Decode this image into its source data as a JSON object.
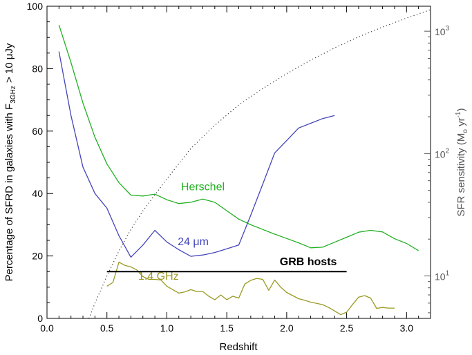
{
  "chart_data": {
    "type": "line",
    "xlabel": "Redshift",
    "ylabel": "Percentage of SFRD in galaxies with F3GHz > 10 μJy",
    "ylabel_parts": {
      "main": "Percentage of SFRD in galaxies with F",
      "sub": "3GHz",
      "tail": " > 10 μJy"
    },
    "y2label": "SFR sensitivity (M☉ yr-1)",
    "y2label_parts": {
      "main": "SFR sensitivity (M",
      "sub": "o",
      "mid": " yr",
      "sup": "-1",
      "tail": ")"
    },
    "xlim": [
      0.0,
      3.2
    ],
    "ylim": [
      0,
      100
    ],
    "y2lim": [
      4.5,
      1600
    ],
    "y2scale": "log",
    "x_ticks": [
      "0.0",
      "0.5",
      "1.0",
      "1.5",
      "2.0",
      "2.5",
      "3.0"
    ],
    "x_tick_values": [
      0.0,
      0.5,
      1.0,
      1.5,
      2.0,
      2.5,
      3.0
    ],
    "y_ticks": [
      "0",
      "20",
      "40",
      "60",
      "80",
      "100"
    ],
    "y_tick_values": [
      0,
      20,
      40,
      60,
      80,
      100
    ],
    "y2_ticks": [
      {
        "value": 10,
        "base": "10",
        "exp": "1"
      },
      {
        "value": 100,
        "base": "10",
        "exp": "2"
      },
      {
        "value": 1000,
        "base": "10",
        "exp": "3"
      }
    ],
    "series": [
      {
        "name": "Herschel",
        "color": "#22b022",
        "axis": "left",
        "label_pos": [
          1.3,
          41
        ],
        "x": [
          0.1,
          0.2,
          0.3,
          0.4,
          0.5,
          0.6,
          0.7,
          0.8,
          0.9,
          1.0,
          1.1,
          1.2,
          1.3,
          1.4,
          1.5,
          1.6,
          1.7,
          1.8,
          1.9,
          2.0,
          2.1,
          2.2,
          2.3,
          2.4,
          2.5,
          2.6,
          2.7,
          2.8,
          2.9,
          3.0,
          3.1
        ],
        "values": [
          94,
          82,
          69,
          58,
          49.5,
          43.5,
          39.5,
          39.2,
          39.8,
          38,
          36.8,
          37.2,
          38.2,
          37.2,
          34.5,
          31.8,
          30,
          28.5,
          27,
          25.6,
          24.2,
          22.6,
          22.8,
          24.4,
          26,
          27.6,
          28.2,
          27.7,
          25.5,
          24,
          21.7
        ]
      },
      {
        "name": "24 μm",
        "color": "#4444bb",
        "axis": "left",
        "label_pos": [
          1.22,
          23.5
        ],
        "x": [
          0.1,
          0.2,
          0.3,
          0.4,
          0.5,
          0.6,
          0.7,
          0.8,
          0.9,
          1.0,
          1.1,
          1.2,
          1.3,
          1.4,
          1.5,
          1.6,
          1.7,
          1.8,
          1.9,
          2.0,
          2.1,
          2.2,
          2.3,
          2.4
        ],
        "values": [
          85.5,
          65,
          48.5,
          40,
          35.3,
          26.5,
          19.6,
          23.5,
          28.2,
          24.5,
          22,
          19.9,
          20.3,
          21.1,
          22.3,
          23.5,
          33,
          43,
          53,
          57,
          61,
          62.5,
          64,
          65
        ]
      },
      {
        "name": "1.4 GHz",
        "color": "#999922",
        "axis": "left",
        "label_pos": [
          0.93,
          12.4
        ],
        "x": [
          0.5,
          0.55,
          0.6,
          0.65,
          0.7,
          0.75,
          0.8,
          0.85,
          0.9,
          0.95,
          1.0,
          1.05,
          1.1,
          1.15,
          1.2,
          1.25,
          1.3,
          1.35,
          1.4,
          1.45,
          1.5,
          1.55,
          1.6,
          1.65,
          1.7,
          1.75,
          1.8,
          1.85,
          1.9,
          1.95,
          2.0,
          2.05,
          2.1,
          2.15,
          2.2,
          2.25,
          2.3,
          2.35,
          2.4,
          2.45,
          2.5,
          2.55,
          2.6,
          2.65,
          2.7,
          2.75,
          2.8,
          2.85,
          2.9
        ],
        "values": [
          10.3,
          11.5,
          18,
          17,
          16.5,
          15.5,
          13.4,
          12.5,
          12.5,
          12.3,
          10.3,
          9.2,
          8.1,
          8.5,
          9.2,
          8.6,
          8.6,
          7.1,
          6,
          7.5,
          6,
          7.1,
          6.5,
          11,
          12.2,
          12.8,
          12.5,
          9,
          12.3,
          10,
          8.3,
          7.3,
          6.3,
          5.8,
          5.2,
          4.8,
          4.4,
          3.5,
          2.4,
          1.2,
          2,
          4.5,
          6.8,
          7.3,
          6.5,
          3.2,
          3.5,
          3.3,
          3.3
        ]
      },
      {
        "name": "SFR sensitivity",
        "color": "#333333",
        "axis": "right",
        "style": "dotted",
        "x": [
          0.35,
          0.4,
          0.5,
          0.6,
          0.7,
          0.8,
          0.9,
          1.0,
          1.2,
          1.4,
          1.6,
          1.8,
          2.0,
          2.2,
          2.4,
          2.6,
          2.8,
          3.0,
          3.2
        ],
        "values": [
          4.5,
          6,
          10,
          16,
          24,
          34,
          46,
          62,
          110,
          170,
          250,
          340,
          450,
          580,
          730,
          900,
          1080,
          1280,
          1500
        ]
      }
    ],
    "annotations": [
      {
        "text": "GRB hosts",
        "x": 2.18,
        "y": 17,
        "line_x": [
          0.5,
          2.5
        ],
        "line_y": 15,
        "color": "#000000"
      }
    ]
  }
}
